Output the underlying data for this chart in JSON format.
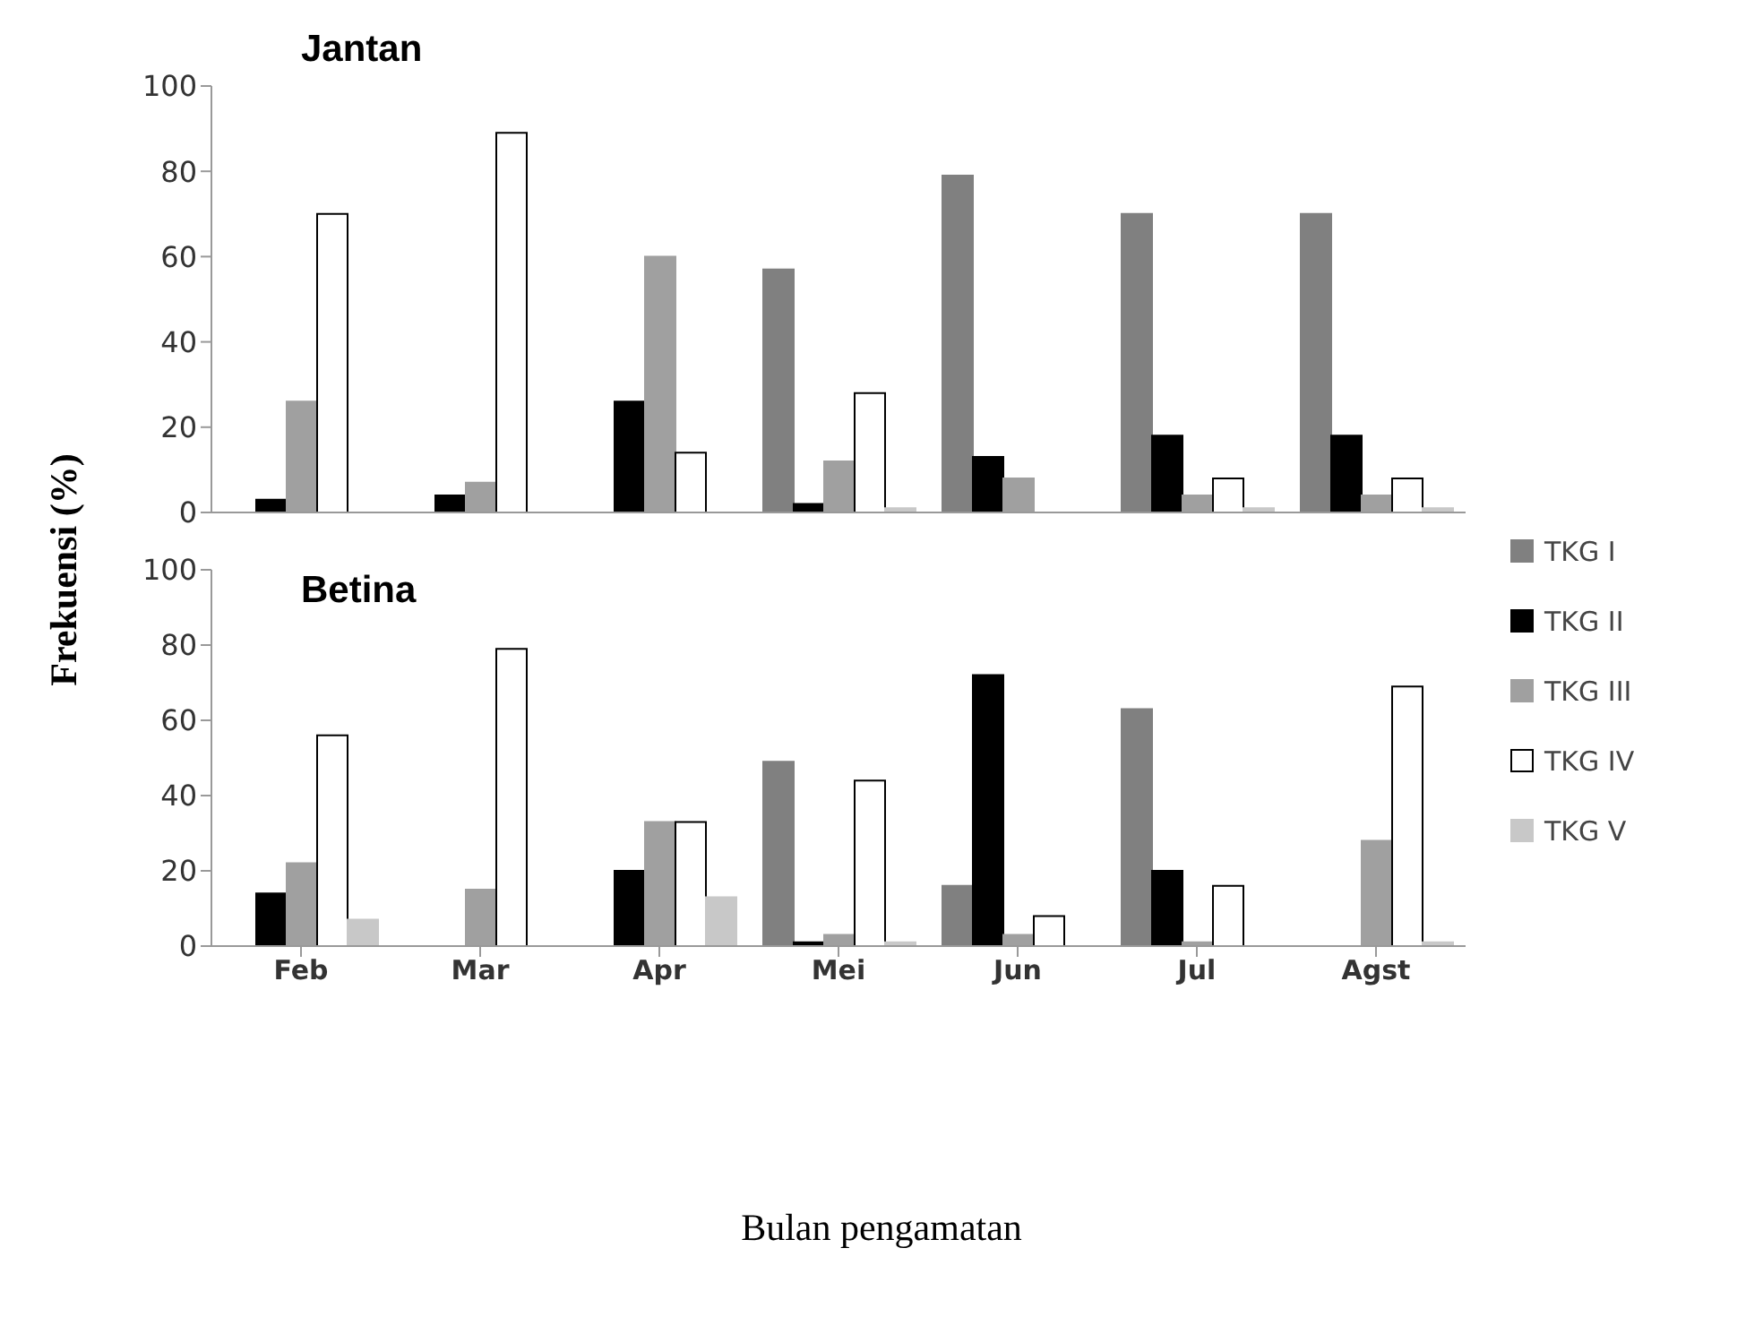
{
  "chart_data": [
    {
      "type": "bar",
      "title": "Jantan",
      "ylabel": "Frekuensi (%)",
      "categories": [
        null,
        null,
        null,
        null,
        null,
        null,
        null
      ],
      "series": [
        {
          "color": "#808080",
          "values": [
            0,
            0,
            0,
            57,
            79,
            70,
            70
          ]
        },
        {
          "color": "#000000",
          "values": [
            3,
            4,
            26,
            2,
            13,
            18,
            18
          ]
        },
        {
          "color": "#a0a0a0",
          "values": [
            26,
            7,
            60,
            12,
            8,
            4,
            4
          ]
        },
        {
          "color": "#ffffff",
          "values": [
            70,
            89,
            14,
            28,
            0,
            8,
            8
          ]
        },
        {
          "color": "#c8c8c8",
          "values": [
            0,
            0,
            0,
            1,
            0,
            1,
            1
          ]
        }
      ],
      "ylim": [
        0,
        100
      ],
      "yticks": [
        0,
        20,
        40,
        60,
        80,
        100
      ],
      "grid": false,
      "legend": false,
      "tick_labels": "y"
    },
    {
      "type": "bar",
      "title": "Betina",
      "xlabel": "Bulan pengamatan",
      "categories": [
        "Feb",
        "Mar",
        "Apr",
        "Mei",
        "Jun",
        "Jul",
        "Agst"
      ],
      "series": [
        {
          "name": "TKG I",
          "color": "#808080",
          "values": [
            0,
            0,
            0,
            49,
            16,
            63,
            0
          ]
        },
        {
          "name": "TKG II",
          "color": "#000000",
          "values": [
            14,
            0,
            20,
            1,
            72,
            20,
            0
          ]
        },
        {
          "name": "TKG III",
          "color": "#a0a0a0",
          "values": [
            22,
            15,
            33,
            3,
            3,
            1,
            28
          ]
        },
        {
          "name": "TKG IV",
          "color": "#ffffff",
          "values": [
            56,
            79,
            33,
            44,
            8,
            16,
            69
          ]
        },
        {
          "name": "TKG V",
          "color": "#c8c8c8",
          "values": [
            7,
            0,
            13,
            1,
            0,
            0,
            1
          ]
        }
      ],
      "ylim": [
        0,
        100
      ],
      "yticks": [
        0,
        20,
        40,
        60,
        80,
        100
      ],
      "grid": false,
      "legend": "right"
    }
  ]
}
